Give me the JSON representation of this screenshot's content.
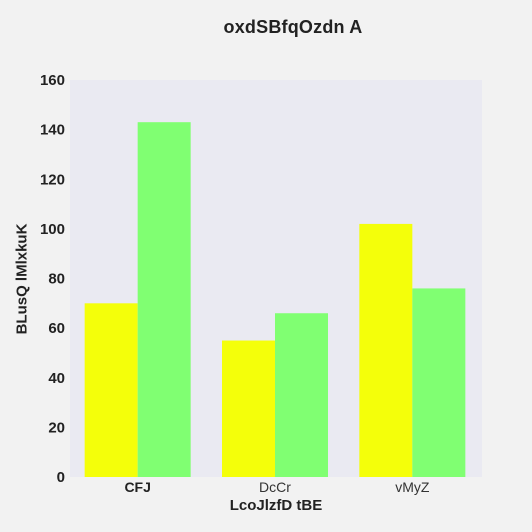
{
  "chart_data": {
    "type": "bar",
    "title": "oxdSBfqOzdn A",
    "xlabel": "LcoJlzfD tBE",
    "ylabel": "BLusQ lMlxkuK",
    "categories": [
      "CFJ",
      "DcCr",
      "vMyZ"
    ],
    "series": [
      {
        "values": [
          70,
          55,
          102
        ],
        "color": "#f4ff0a"
      },
      {
        "values": [
          143,
          66,
          76
        ],
        "color": "#80ff72"
      }
    ],
    "ylim": [
      0,
      160
    ],
    "yticks": [
      0,
      20,
      40,
      60,
      80,
      100,
      120,
      140,
      160
    ],
    "grid": false,
    "legend": "none",
    "plot_background": "#eaeaf2",
    "page_background": "#f2f2f2"
  }
}
